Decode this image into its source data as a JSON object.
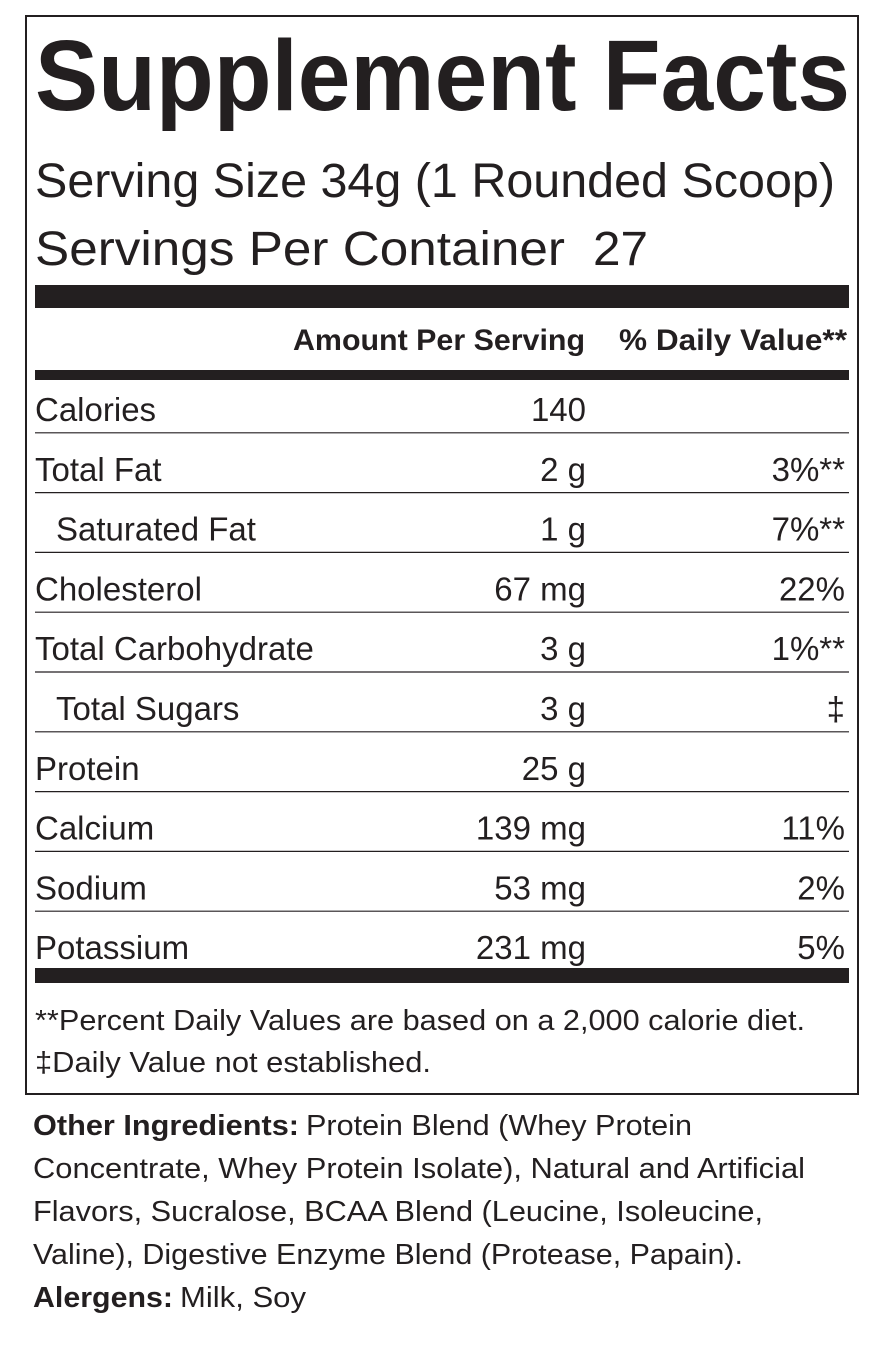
{
  "title": "Supplement Facts",
  "serving_size": "Serving Size 34g (1 Rounded Scoop)",
  "servings_per_container": {
    "label": "Servings Per Container",
    "value": "27"
  },
  "headers": {
    "amount": "Amount Per Serving",
    "daily_value": "% Daily Value**"
  },
  "rows": [
    {
      "name": "Calories",
      "amount": "140",
      "dv": null,
      "indent": false
    },
    {
      "name": "Total Fat",
      "amount": "2 g",
      "dv": "3%**",
      "indent": false
    },
    {
      "name": "Saturated Fat",
      "amount": "1 g",
      "dv": "7%**",
      "indent": true
    },
    {
      "name": "Cholesterol",
      "amount": "67 mg",
      "dv": "22%",
      "indent": false
    },
    {
      "name": "Total Carbohydrate",
      "amount": "3 g",
      "dv": "1%**",
      "indent": false
    },
    {
      "name": "Total Sugars",
      "amount": "3 g",
      "dv": "‡",
      "indent": true
    },
    {
      "name": "Protein",
      "amount": "25 g",
      "dv": null,
      "indent": false
    },
    {
      "name": "Calcium",
      "amount": "139 mg",
      "dv": "11%",
      "indent": false
    },
    {
      "name": "Sodium",
      "amount": "53 mg",
      "dv": "2%",
      "indent": false
    },
    {
      "name": "Potassium",
      "amount": "231 mg",
      "dv": "5%",
      "indent": false
    }
  ],
  "footnotes": [
    "**Percent Daily Values are based on a 2,000 calorie diet.",
    "‡Daily Value not established."
  ],
  "ingredients": {
    "label": "Other Ingredients:",
    "lines": [
      "Protein Blend (Whey Protein",
      "Concentrate, Whey Protein Isolate), Natural and Artificial",
      "Flavors, Sucralose, BCAA Blend (Leucine, Isoleucine,",
      "Valine), Digestive Enzyme Blend (Protease, Papain)."
    ]
  },
  "allergens": {
    "label": "Alergens:",
    "text": "Milk, Soy"
  }
}
